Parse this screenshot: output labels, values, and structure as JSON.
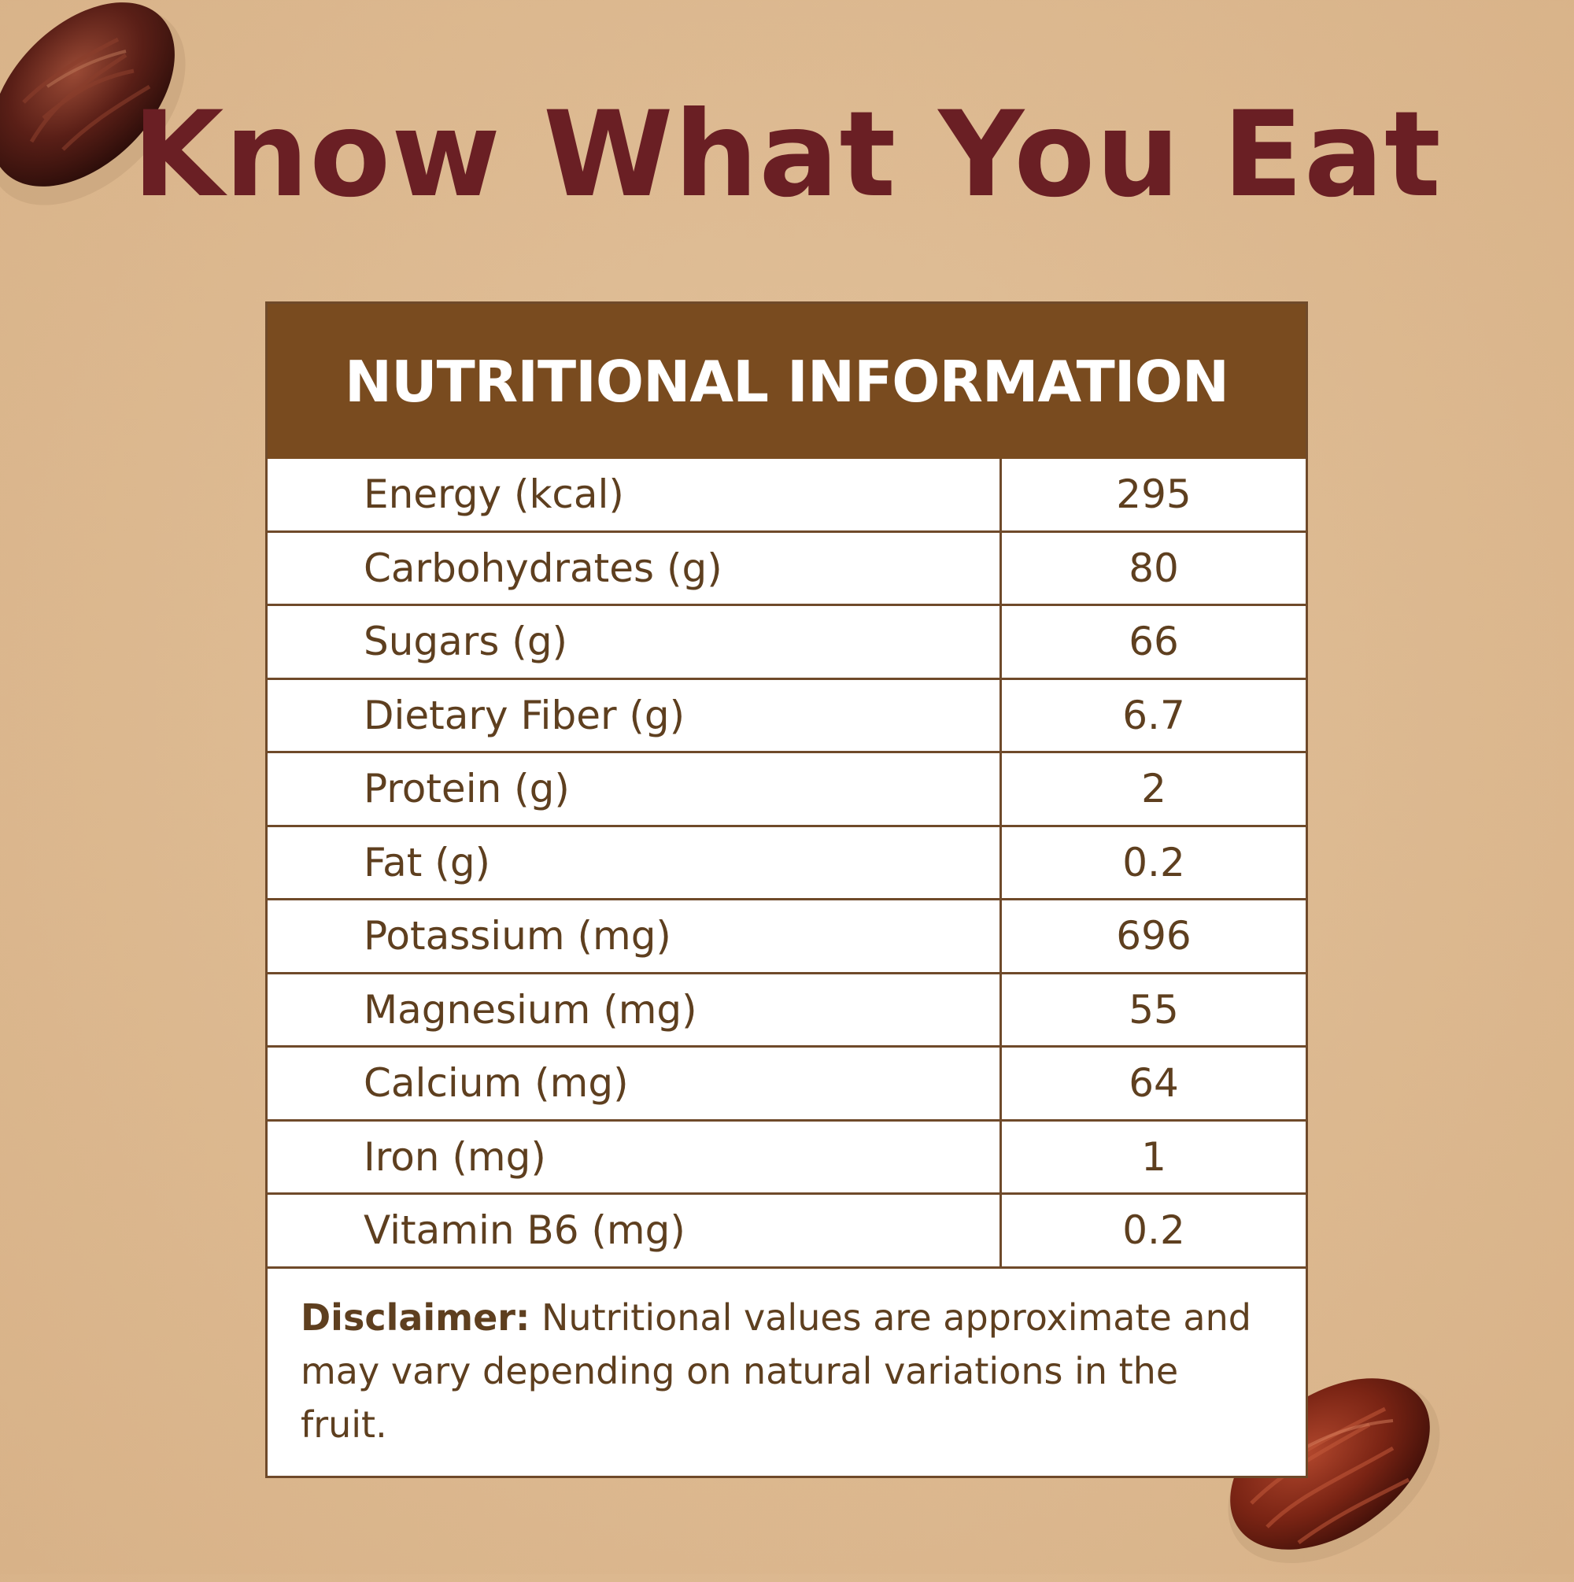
{
  "headline": "Know What You Eat",
  "card": {
    "title": "NUTRITIONAL INFORMATION",
    "rows": [
      {
        "name": "Energy (kcal)",
        "value": "295"
      },
      {
        "name": "Carbohydrates (g)",
        "value": "80"
      },
      {
        "name": "Sugars (g)",
        "value": "66"
      },
      {
        "name": "Dietary Fiber (g)",
        "value": "6.7"
      },
      {
        "name": "Protein (g)",
        "value": "2"
      },
      {
        "name": "Fat (g)",
        "value": "0.2"
      },
      {
        "name": "Potassium (mg)",
        "value": "696"
      },
      {
        "name": "Magnesium (mg)",
        "value": "55"
      },
      {
        "name": "Calcium (mg)",
        "value": "64"
      },
      {
        "name": "Iron (mg)",
        "value": "1"
      },
      {
        "name": "Vitamin B6 (mg)",
        "value": "0.2"
      }
    ],
    "disclaimer_label": "Disclaimer:",
    "disclaimer_text": " Nutritional values are approximate and may vary depending on natural variations in the fruit."
  },
  "colors": {
    "background": "#dcb88f",
    "headline": "#6a1f24",
    "header_bg": "#794b1f",
    "text": "#5e3f1f",
    "border": "#6f4a2a"
  },
  "decorations": [
    "date-fruit-image",
    "date-fruit-image"
  ]
}
